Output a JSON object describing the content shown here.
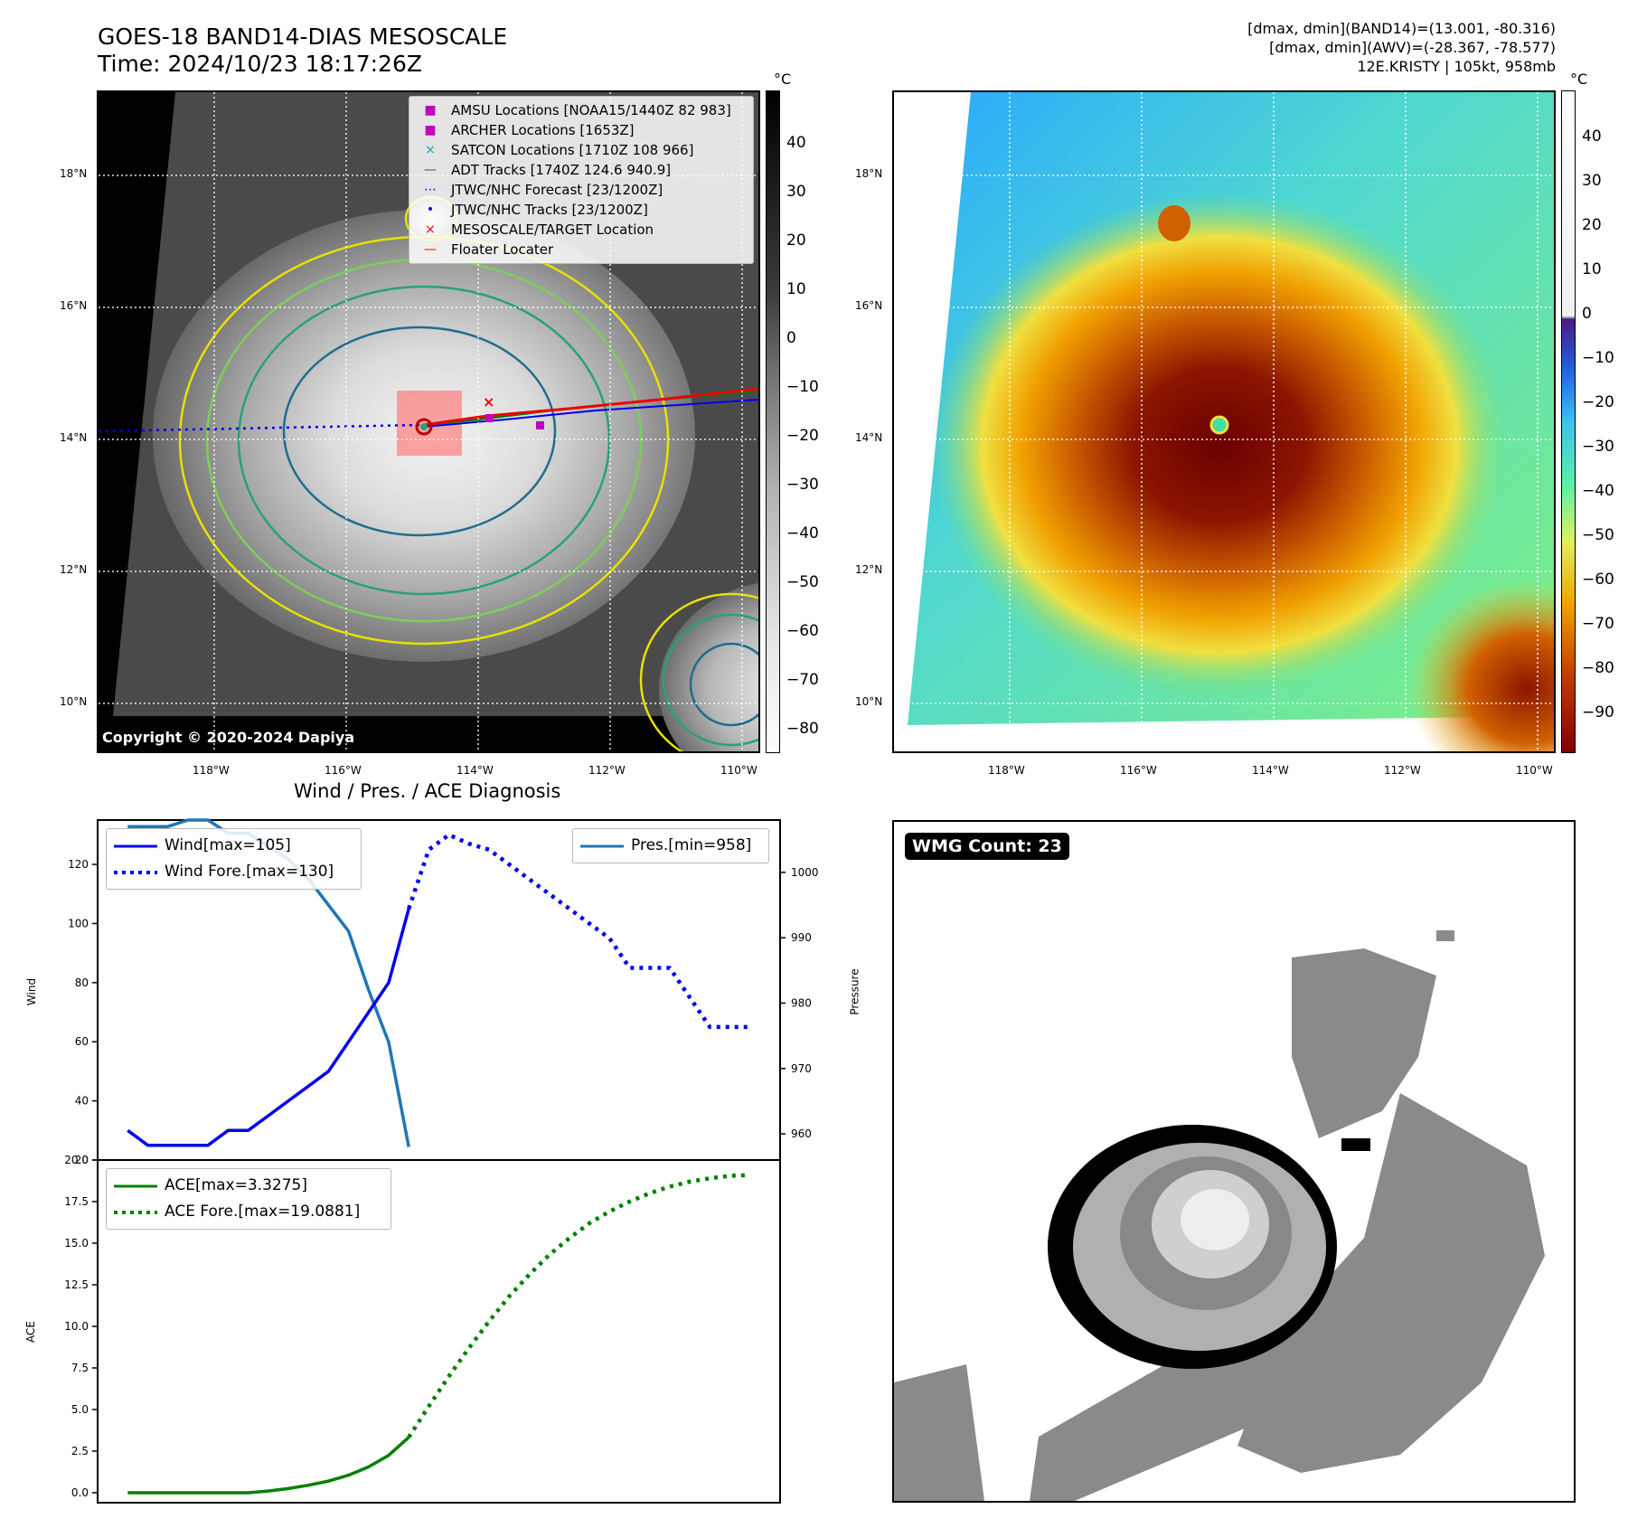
{
  "header": {
    "title": "GOES-18 BAND14-DIAS MESOSCALE",
    "time": "Time: 2024/10/23 18:17:26Z",
    "range_band14": "[dmax, dmin](BAND14)=(13.001, -80.316)",
    "range_awv": "[dmax, dmin](AWV)=(-28.367, -78.577)",
    "storm": "12E.KRISTY | 105kt, 958mb"
  },
  "colors": {
    "wind": "#0000ee",
    "pressure": "#1f77b4",
    "ace": "#008000",
    "frame": "#000000"
  },
  "ir_map": {
    "copyright": "Copyright © 2020-2024 Dapiya",
    "lat_labels": [
      "18°N",
      "16°N",
      "14°N",
      "12°N",
      "10°N"
    ],
    "lon_labels": [
      "118°W",
      "116°W",
      "114°W",
      "112°W",
      "110°W"
    ],
    "colorbar_unit": "°C",
    "colorbar_ticks": [
      "40",
      "30",
      "20",
      "10",
      "0",
      "−10",
      "−20",
      "−30",
      "−40",
      "−50",
      "−60",
      "−70",
      "−80"
    ],
    "legend": [
      {
        "marker": "■",
        "color": "#c000c0",
        "label": "AMSU Locations [NOAA15/1440Z 82 983]"
      },
      {
        "marker": "■",
        "color": "#c000c0",
        "label": "ARCHER Locations [1653Z]"
      },
      {
        "marker": "×",
        "color": "#00b0b0",
        "label": "SATCON Locations [1710Z 108 966]"
      },
      {
        "marker": "—",
        "color": "#008000",
        "label": "ADT Tracks [1740Z 124.6 940.9]"
      },
      {
        "marker": "⋯",
        "color": "#0000ee",
        "label": "JTWC/NHC Forecast [23/1200Z]"
      },
      {
        "marker": "•",
        "color": "#0000ee",
        "label": "JTWC/NHC Tracks [23/1200Z]"
      },
      {
        "marker": "×",
        "color": "#ee0000",
        "label": "MESOSCALE/TARGET Location"
      },
      {
        "marker": "—",
        "color": "#ee0000",
        "label": "Floater Locater"
      }
    ]
  },
  "awv_map": {
    "lat_labels": [
      "18°N",
      "16°N",
      "14°N",
      "12°N",
      "10°N"
    ],
    "lon_labels": [
      "118°W",
      "116°W",
      "114°W",
      "112°W",
      "110°W"
    ],
    "colorbar_unit": "°C",
    "colorbar_ticks": [
      "40",
      "30",
      "20",
      "10",
      "0",
      "−10",
      "−20",
      "−30",
      "−40",
      "−50",
      "−60",
      "−70",
      "−80",
      "−90"
    ]
  },
  "diag": {
    "title": "Wind / Pres. / ACE Diagnosis",
    "wind_ylabel": "Wind",
    "pres_ylabel": "Pressure",
    "ace_ylabel": "ACE",
    "wind_legend": [
      "Wind[max=105]",
      "Wind Fore.[max=130]"
    ],
    "pres_legend": "Pres.[min=958]",
    "ace_legend": [
      "ACE[max=3.3275]",
      "ACE Fore.[max=19.0881]"
    ]
  },
  "wmg": {
    "label": "WMG Count: 23"
  },
  "chart_data": [
    {
      "type": "line",
      "name": "wind",
      "ylabel": "Wind",
      "ylim": [
        20,
        135
      ],
      "yticks": [
        20,
        40,
        60,
        80,
        100,
        120
      ],
      "series": [
        {
          "name": "Wind[max=105]",
          "x": [
            0,
            1,
            2,
            3,
            4,
            5,
            6,
            7,
            8,
            9,
            10,
            11,
            12,
            13,
            14
          ],
          "values": [
            30,
            25,
            25,
            25,
            25,
            30,
            30,
            35,
            40,
            45,
            50,
            60,
            70,
            80,
            105
          ]
        },
        {
          "name": "Wind Fore.[max=130]",
          "x": [
            14,
            15,
            16,
            17,
            18,
            19,
            20,
            21,
            22,
            23,
            24,
            25,
            26,
            27,
            28,
            29,
            30,
            31
          ],
          "values": [
            105,
            125,
            130,
            127,
            125,
            120,
            115,
            110,
            105,
            100,
            95,
            85,
            85,
            85,
            75,
            65,
            65,
            65
          ]
        }
      ]
    },
    {
      "type": "line",
      "name": "pressure",
      "ylabel": "Pressure",
      "ylim": [
        956,
        1008
      ],
      "yticks": [
        960,
        970,
        980,
        990,
        1000
      ],
      "series": [
        {
          "name": "Pres.[min=958]",
          "x": [
            0,
            1,
            2,
            3,
            4,
            5,
            6,
            7,
            8,
            9,
            10,
            11,
            12,
            13,
            14
          ],
          "values": [
            1007,
            1007,
            1007,
            1008,
            1008,
            1006,
            1006,
            1004,
            1002,
            999,
            995,
            991,
            982,
            974,
            958
          ]
        }
      ]
    },
    {
      "type": "line",
      "name": "ace",
      "ylabel": "ACE",
      "ylim": [
        -0.6,
        20
      ],
      "yticks": [
        0.0,
        2.5,
        5.0,
        7.5,
        10.0,
        12.5,
        15.0,
        17.5,
        20.0
      ],
      "ytick_labels": [
        "0.0",
        "2.5",
        "5.0",
        "7.5",
        "10.0",
        "12.5",
        "15.0",
        "17.5",
        "20.0"
      ],
      "series": [
        {
          "name": "ACE[max=3.3275]",
          "x": [
            0,
            1,
            2,
            3,
            4,
            5,
            6,
            7,
            8,
            9,
            10,
            11,
            12,
            13,
            14
          ],
          "values": [
            0,
            0,
            0,
            0,
            0,
            0,
            0,
            0.1,
            0.25,
            0.45,
            0.7,
            1.05,
            1.55,
            2.25,
            3.33
          ]
        },
        {
          "name": "ACE Fore.[max=19.0881]",
          "x": [
            14,
            15,
            16,
            17,
            18,
            19,
            20,
            21,
            22,
            23,
            24,
            25,
            26,
            27,
            28,
            29,
            30,
            31
          ],
          "values": [
            3.33,
            5.2,
            7.0,
            8.7,
            10.3,
            11.8,
            13.1,
            14.3,
            15.3,
            16.2,
            16.9,
            17.5,
            18.0,
            18.4,
            18.7,
            18.9,
            19.05,
            19.09
          ]
        }
      ]
    }
  ]
}
